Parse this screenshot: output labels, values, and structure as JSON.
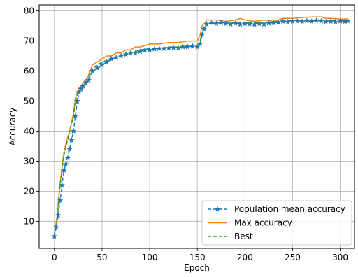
{
  "chart_data": {
    "type": "line",
    "title": "",
    "xlabel": "Epoch",
    "ylabel": "Accuracy",
    "xlim": [
      -16,
      315
    ],
    "ylim": [
      1,
      82
    ],
    "xticks": [
      0,
      50,
      100,
      150,
      200,
      250,
      300
    ],
    "yticks": [
      10,
      20,
      30,
      40,
      50,
      60,
      70,
      80
    ],
    "grid": true,
    "legend_position": "lower-right",
    "series": [
      {
        "name": "Population mean accuracy",
        "color": "#1f77b4",
        "style": "dashed",
        "marker": "star",
        "points": [
          [
            0,
            5
          ],
          [
            2,
            8
          ],
          [
            4,
            12
          ],
          [
            6,
            17
          ],
          [
            8,
            22
          ],
          [
            10,
            27
          ],
          [
            12,
            29
          ],
          [
            14,
            31
          ],
          [
            16,
            34
          ],
          [
            18,
            37
          ],
          [
            20,
            40
          ],
          [
            22,
            45
          ],
          [
            24,
            50
          ],
          [
            26,
            53
          ],
          [
            28,
            54
          ],
          [
            30,
            55
          ],
          [
            33,
            56
          ],
          [
            36,
            57
          ],
          [
            40,
            60
          ],
          [
            45,
            61
          ],
          [
            50,
            62
          ],
          [
            55,
            63
          ],
          [
            60,
            64
          ],
          [
            65,
            64.5
          ],
          [
            70,
            65
          ],
          [
            75,
            65.5
          ],
          [
            80,
            66
          ],
          [
            85,
            66
          ],
          [
            90,
            66.5
          ],
          [
            95,
            67
          ],
          [
            100,
            67
          ],
          [
            105,
            67.3
          ],
          [
            110,
            67.5
          ],
          [
            115,
            67.5
          ],
          [
            120,
            67.6
          ],
          [
            125,
            67.8
          ],
          [
            130,
            67.7
          ],
          [
            135,
            68
          ],
          [
            140,
            68
          ],
          [
            145,
            68.3
          ],
          [
            150,
            68
          ],
          [
            153,
            69
          ],
          [
            155,
            72
          ],
          [
            157,
            74
          ],
          [
            160,
            75.5
          ],
          [
            165,
            76
          ],
          [
            170,
            75.8
          ],
          [
            175,
            76
          ],
          [
            180,
            75.8
          ],
          [
            185,
            75.6
          ],
          [
            190,
            75.9
          ],
          [
            195,
            75.5
          ],
          [
            200,
            75.8
          ],
          [
            205,
            75.7
          ],
          [
            210,
            75.5
          ],
          [
            215,
            75.8
          ],
          [
            220,
            75.6
          ],
          [
            225,
            75.9
          ],
          [
            230,
            76
          ],
          [
            235,
            76.2
          ],
          [
            240,
            76.5
          ],
          [
            245,
            76.3
          ],
          [
            250,
            76.5
          ],
          [
            255,
            76.6
          ],
          [
            260,
            76.4
          ],
          [
            265,
            76.7
          ],
          [
            270,
            76.5
          ],
          [
            275,
            76.8
          ],
          [
            280,
            76.6
          ],
          [
            285,
            76.4
          ],
          [
            290,
            76.5
          ],
          [
            295,
            76.3
          ],
          [
            300,
            76.6
          ],
          [
            305,
            76.5
          ],
          [
            308,
            76.7
          ]
        ]
      },
      {
        "name": "Max accuracy",
        "color": "#ff7f0e",
        "style": "solid",
        "marker": "none",
        "points": [
          [
            0,
            6
          ],
          [
            3,
            12
          ],
          [
            5,
            20
          ],
          [
            8,
            28
          ],
          [
            10,
            33
          ],
          [
            13,
            37
          ],
          [
            16,
            40
          ],
          [
            20,
            46
          ],
          [
            22,
            51
          ],
          [
            25,
            54
          ],
          [
            30,
            56
          ],
          [
            35,
            58
          ],
          [
            40,
            62
          ],
          [
            45,
            63
          ],
          [
            50,
            64
          ],
          [
            55,
            65
          ],
          [
            60,
            65
          ],
          [
            65,
            66
          ],
          [
            70,
            66
          ],
          [
            75,
            67
          ],
          [
            80,
            67
          ],
          [
            85,
            68
          ],
          [
            90,
            68
          ],
          [
            95,
            68.5
          ],
          [
            100,
            69
          ],
          [
            110,
            69
          ],
          [
            120,
            69.5
          ],
          [
            130,
            69.5
          ],
          [
            140,
            70
          ],
          [
            150,
            70
          ],
          [
            153,
            72
          ],
          [
            155,
            75
          ],
          [
            158,
            76
          ],
          [
            160,
            77
          ],
          [
            170,
            77
          ],
          [
            180,
            76.5
          ],
          [
            190,
            77
          ],
          [
            195,
            77.5
          ],
          [
            200,
            77
          ],
          [
            210,
            76.5
          ],
          [
            220,
            77
          ],
          [
            230,
            76.5
          ],
          [
            240,
            77.5
          ],
          [
            250,
            77.5
          ],
          [
            260,
            77.8
          ],
          [
            270,
            78
          ],
          [
            280,
            78
          ],
          [
            285,
            77.5
          ],
          [
            290,
            77.5
          ],
          [
            300,
            77.3
          ],
          [
            308,
            77.3
          ]
        ]
      },
      {
        "name": "Best",
        "color": "#2ca02c",
        "style": "dashed",
        "marker": "none",
        "points": [
          [
            0,
            6
          ],
          [
            3,
            11
          ],
          [
            5,
            19
          ],
          [
            8,
            27
          ],
          [
            10,
            32
          ],
          [
            13,
            36
          ],
          [
            16,
            40
          ],
          [
            20,
            45
          ],
          [
            22,
            50
          ],
          [
            25,
            53
          ],
          [
            30,
            55
          ],
          [
            35,
            57
          ],
          [
            40,
            61
          ],
          [
            45,
            62
          ],
          [
            50,
            63
          ],
          [
            60,
            64
          ],
          [
            70,
            65
          ],
          [
            80,
            66
          ],
          [
            90,
            67
          ],
          [
            100,
            67.5
          ],
          [
            110,
            67.5
          ],
          [
            120,
            68
          ],
          [
            130,
            68
          ],
          [
            140,
            68.5
          ],
          [
            150,
            68.5
          ],
          [
            153,
            70
          ],
          [
            155,
            73
          ],
          [
            158,
            75
          ],
          [
            160,
            76
          ],
          [
            170,
            76
          ],
          [
            180,
            76
          ],
          [
            190,
            76
          ],
          [
            200,
            76
          ],
          [
            210,
            76
          ],
          [
            220,
            76
          ],
          [
            230,
            76.5
          ],
          [
            240,
            76.5
          ],
          [
            250,
            76.8
          ],
          [
            260,
            76.8
          ],
          [
            270,
            77
          ],
          [
            280,
            77
          ],
          [
            290,
            76.8
          ],
          [
            300,
            76.8
          ],
          [
            308,
            76.8
          ]
        ]
      }
    ]
  }
}
